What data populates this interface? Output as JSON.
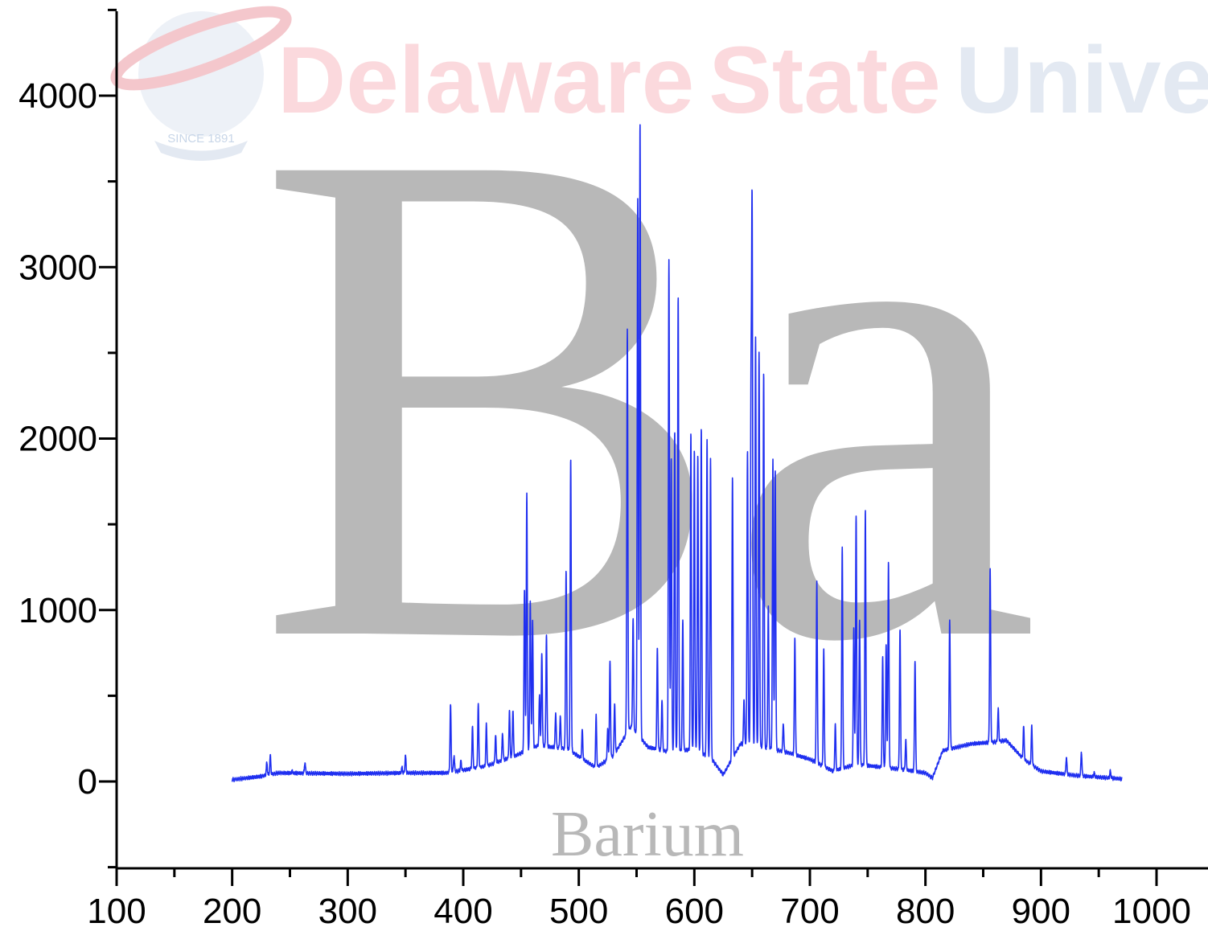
{
  "watermark": {
    "word1": "Delaware",
    "word2": "State",
    "word3": "University",
    "seal_text": "SINCE 1891",
    "colors": {
      "delaware_state": "#fbd9dd",
      "university": "#e3e9f2",
      "seal": "#e7edf5"
    }
  },
  "element": {
    "symbol": "Ba",
    "name": "Barium",
    "color": "#b8b8b8"
  },
  "chart_data": {
    "type": "line",
    "title": "",
    "xlabel": "",
    "ylabel": "",
    "xlim": [
      100,
      1000
    ],
    "ylim": [
      -500,
      4500
    ],
    "xticks": [
      100,
      200,
      300,
      400,
      500,
      600,
      700,
      800,
      900,
      1000
    ],
    "yticks": [
      0,
      1000,
      2000,
      3000,
      4000
    ],
    "grid": false,
    "legend": "none",
    "line_color": "#1f2ff0",
    "x_range": [
      200,
      970
    ],
    "baseline": [
      [
        200,
        10
      ],
      [
        225,
        30
      ],
      [
        240,
        50
      ],
      [
        300,
        45
      ],
      [
        350,
        50
      ],
      [
        385,
        50
      ],
      [
        395,
        60
      ],
      [
        420,
        90
      ],
      [
        445,
        150
      ],
      [
        465,
        210
      ],
      [
        490,
        190
      ],
      [
        515,
        80
      ],
      [
        530,
        150
      ],
      [
        545,
        320
      ],
      [
        560,
        200
      ],
      [
        580,
        170
      ],
      [
        600,
        190
      ],
      [
        615,
        130
      ],
      [
        625,
        40
      ],
      [
        640,
        220
      ],
      [
        660,
        200
      ],
      [
        680,
        170
      ],
      [
        700,
        130
      ],
      [
        720,
        60
      ],
      [
        740,
        100
      ],
      [
        780,
        70
      ],
      [
        800,
        50
      ],
      [
        806,
        20
      ],
      [
        815,
        180
      ],
      [
        840,
        220
      ],
      [
        860,
        230
      ],
      [
        870,
        240
      ],
      [
        885,
        130
      ],
      [
        900,
        60
      ],
      [
        930,
        35
      ],
      [
        970,
        15
      ]
    ],
    "peaks": [
      [
        230,
        110
      ],
      [
        233,
        150
      ],
      [
        252,
        60
      ],
      [
        263,
        110
      ],
      [
        275,
        40
      ],
      [
        338,
        50
      ],
      [
        347,
        80
      ],
      [
        350,
        150
      ],
      [
        389,
        450
      ],
      [
        392,
        150
      ],
      [
        398,
        120
      ],
      [
        408,
        320
      ],
      [
        413,
        450
      ],
      [
        420,
        330
      ],
      [
        428,
        270
      ],
      [
        434,
        280
      ],
      [
        440,
        410
      ],
      [
        443,
        420
      ],
      [
        453,
        1130
      ],
      [
        455,
        1680
      ],
      [
        458,
        1060
      ],
      [
        460,
        940
      ],
      [
        466,
        500
      ],
      [
        468,
        750
      ],
      [
        472,
        860
      ],
      [
        480,
        400
      ],
      [
        484,
        380
      ],
      [
        489,
        1230
      ],
      [
        493,
        1880
      ],
      [
        503,
        300
      ],
      [
        515,
        380
      ],
      [
        525,
        300
      ],
      [
        527,
        700
      ],
      [
        531,
        460
      ],
      [
        542,
        2640
      ],
      [
        547,
        950
      ],
      [
        551,
        3400
      ],
      [
        553,
        3850
      ],
      [
        568,
        780
      ],
      [
        572,
        480
      ],
      [
        578,
        3040
      ],
      [
        580,
        1890
      ],
      [
        583,
        2040
      ],
      [
        586,
        2830
      ],
      [
        590,
        940
      ],
      [
        597,
        2040
      ],
      [
        600,
        1930
      ],
      [
        603,
        1900
      ],
      [
        606,
        2070
      ],
      [
        611,
        2000
      ],
      [
        614,
        1880
      ],
      [
        633,
        1780
      ],
      [
        643,
        480
      ],
      [
        646,
        1930
      ],
      [
        649,
        2150
      ],
      [
        650,
        3280
      ],
      [
        653,
        2590
      ],
      [
        656,
        2500
      ],
      [
        660,
        2390
      ],
      [
        664,
        1020
      ],
      [
        668,
        1870
      ],
      [
        670,
        1820
      ],
      [
        677,
        340
      ],
      [
        687,
        840
      ],
      [
        706,
        1180
      ],
      [
        712,
        770
      ],
      [
        722,
        330
      ],
      [
        728,
        1370
      ],
      [
        738,
        900
      ],
      [
        740,
        1560
      ],
      [
        743,
        940
      ],
      [
        748,
        1580
      ],
      [
        763,
        720
      ],
      [
        766,
        800
      ],
      [
        768,
        1270
      ],
      [
        778,
        880
      ],
      [
        783,
        240
      ],
      [
        791,
        710
      ],
      [
        821,
        940
      ],
      [
        856,
        1240
      ],
      [
        863,
        420
      ],
      [
        885,
        320
      ],
      [
        892,
        320
      ],
      [
        922,
        140
      ],
      [
        935,
        170
      ],
      [
        946,
        50
      ],
      [
        960,
        60
      ]
    ]
  }
}
